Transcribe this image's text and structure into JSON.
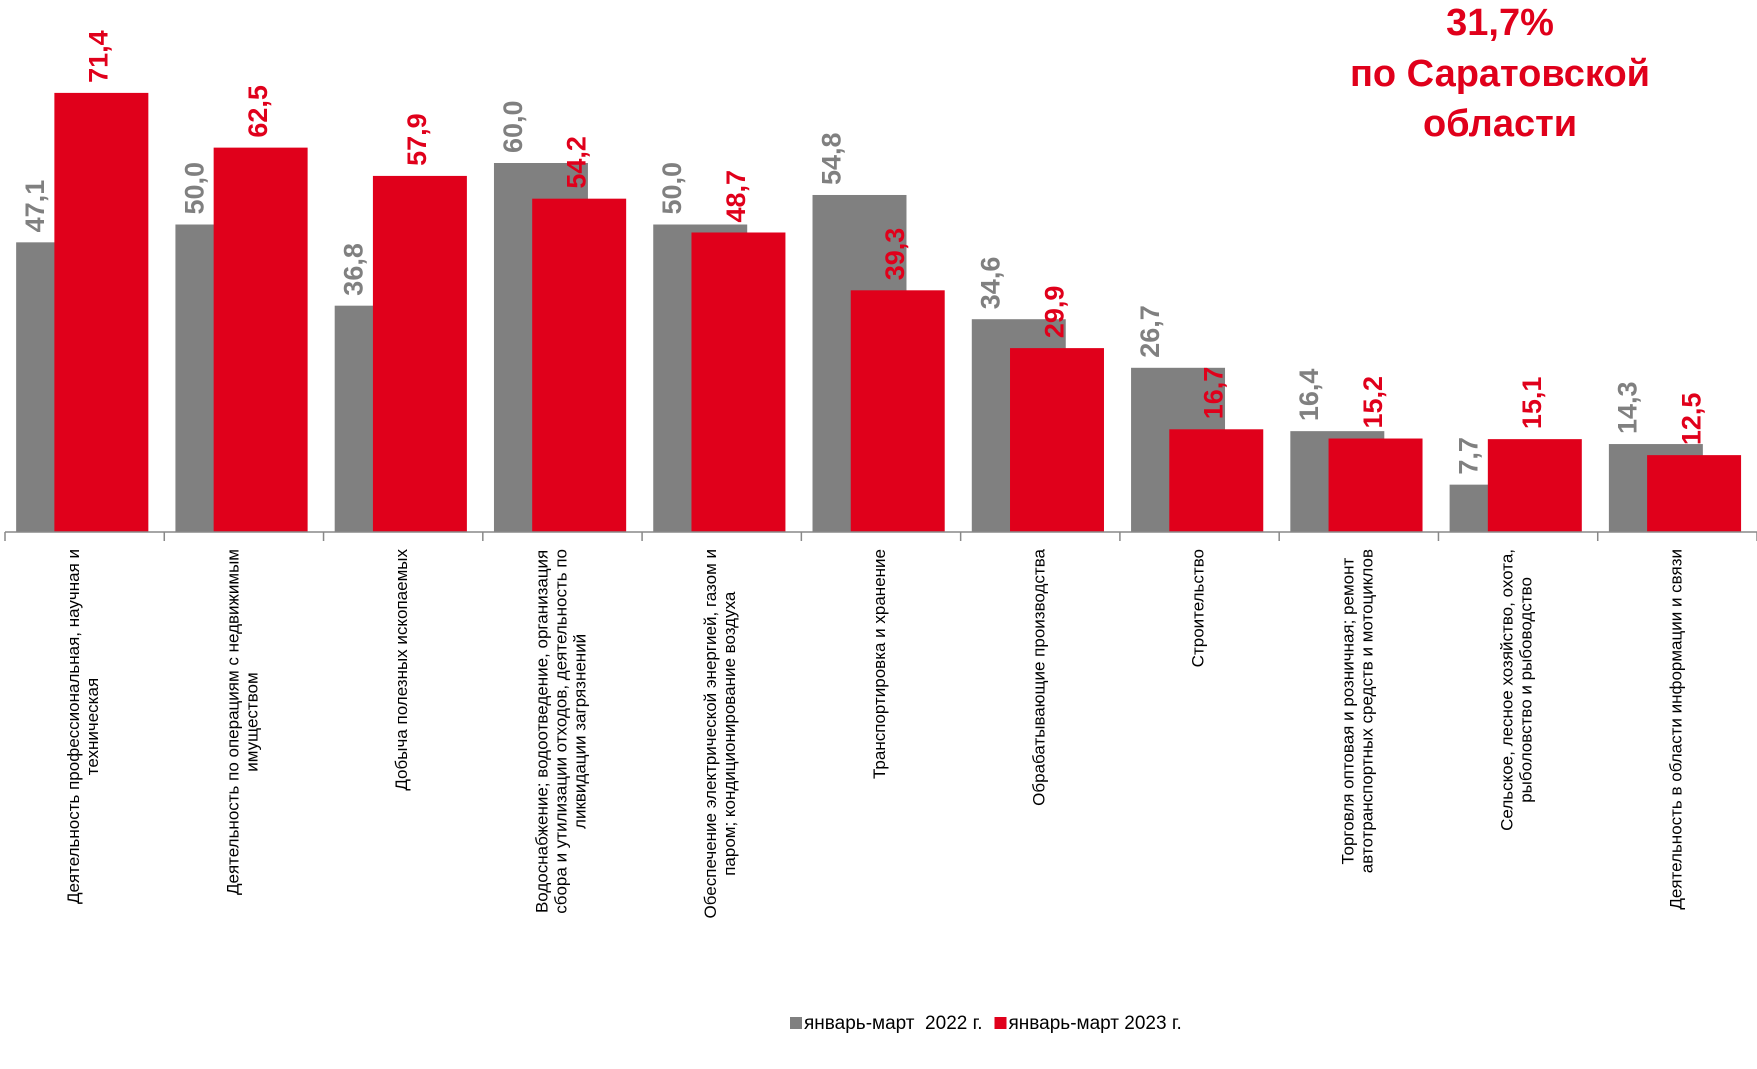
{
  "chart_data": {
    "type": "bar",
    "annotation": [
      "31,7%",
      "по Саратовской",
      "области"
    ],
    "categories": [
      "Деятельность профессиональная, научная и\nтехническая",
      "Деятельность по операциям с недвижимым\nимуществом",
      "Добыча полезных ископаемых",
      "Водоснабжение; водоотведение, организация\nсбора и утилизации отходов, деятельность по\nликвидации загрязнений",
      "Обеспечение электрической энергией, газом и\nпаром; кондиционирование воздуха",
      "Транспортировка и хранение",
      "Обрабатывающие производства",
      "Строительство",
      "Торговля оптовая и розничная; ремонт\nавтотранспортных средств и мотоциклов",
      "Сельское, лесное хозяйство, охота,\nрыболовство и  рыбоводство",
      "Деятельность в области информации и связи"
    ],
    "series": [
      {
        "name": "январь-март  2022 г.",
        "color": "#808080",
        "values": [
          47.1,
          50.0,
          36.8,
          60.0,
          50.0,
          54.8,
          34.6,
          26.7,
          16.4,
          7.7,
          14.3
        ],
        "value_labels": [
          "47,1",
          "50,0",
          "36,8",
          "60,0",
          "50,0",
          "54,8",
          "34,6",
          "26,7",
          "16,4",
          "7,7",
          "14,3"
        ]
      },
      {
        "name": "январь-март 2023 г.",
        "color": "#e0001b",
        "values": [
          71.4,
          62.5,
          57.9,
          54.2,
          48.7,
          39.3,
          29.9,
          16.7,
          15.2,
          15.1,
          12.5
        ],
        "value_labels": [
          "71,4",
          "62,5",
          "57,9",
          "54,2",
          "48,7",
          "39,3",
          "29,9",
          "16,7",
          "15,2",
          "15,1",
          "12,5"
        ]
      }
    ],
    "ylim": [
      0,
      80
    ],
    "legend": "bottom"
  }
}
